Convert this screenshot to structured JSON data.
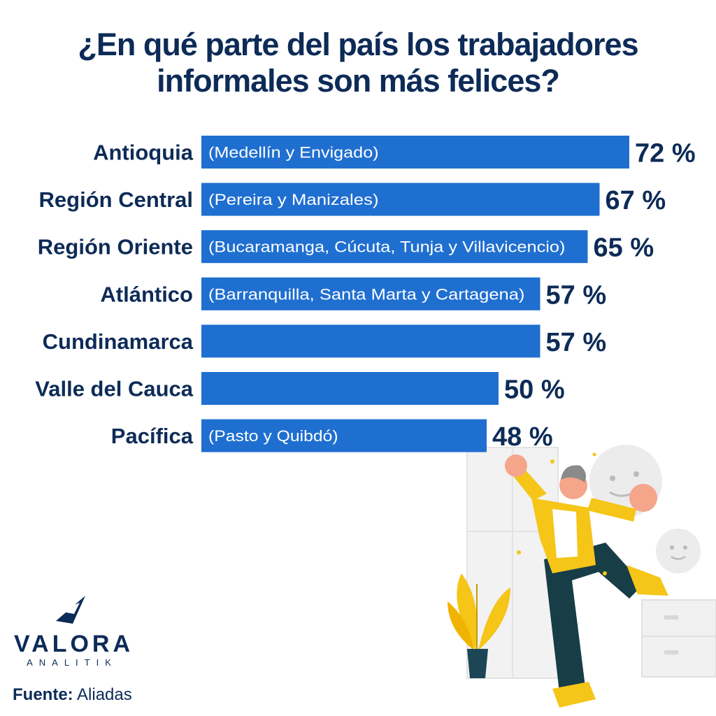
{
  "title_lines": [
    "¿En qué parte del país los trabajadores",
    "informales son más felices?"
  ],
  "colors": {
    "bar": "#1f6fd0",
    "text": "#0d2b57",
    "accent_yellow": "#f5c518"
  },
  "chart_data": {
    "type": "bar",
    "orientation": "horizontal",
    "categories": [
      "Antioquia",
      "Región Central",
      "Región Oriente",
      "Atlántico",
      "Cundinamarca",
      "Valle del Cauca",
      "Pacífica"
    ],
    "sublabels": [
      "(Medellín y Envigado)",
      "(Pereira y Manizales)",
      "(Bucaramanga, Cúcuta, Tunja y Villavicencio)",
      "(Barranquilla, Santa Marta y Cartagena)",
      "",
      "",
      "(Pasto y Quibdó)"
    ],
    "values": [
      72,
      67,
      65,
      57,
      57,
      50,
      48
    ],
    "value_labels": [
      "72 %",
      "67 %",
      "65 %",
      "57 %",
      "57 %",
      "50 %",
      "48 %"
    ],
    "unit": "%",
    "xlim": [
      0,
      100
    ],
    "grid": false,
    "legend": "none"
  },
  "logo": {
    "name": "VALORA",
    "sub": "ANALITIK"
  },
  "source": {
    "label": "Fuente:",
    "value": "Aliadas"
  }
}
